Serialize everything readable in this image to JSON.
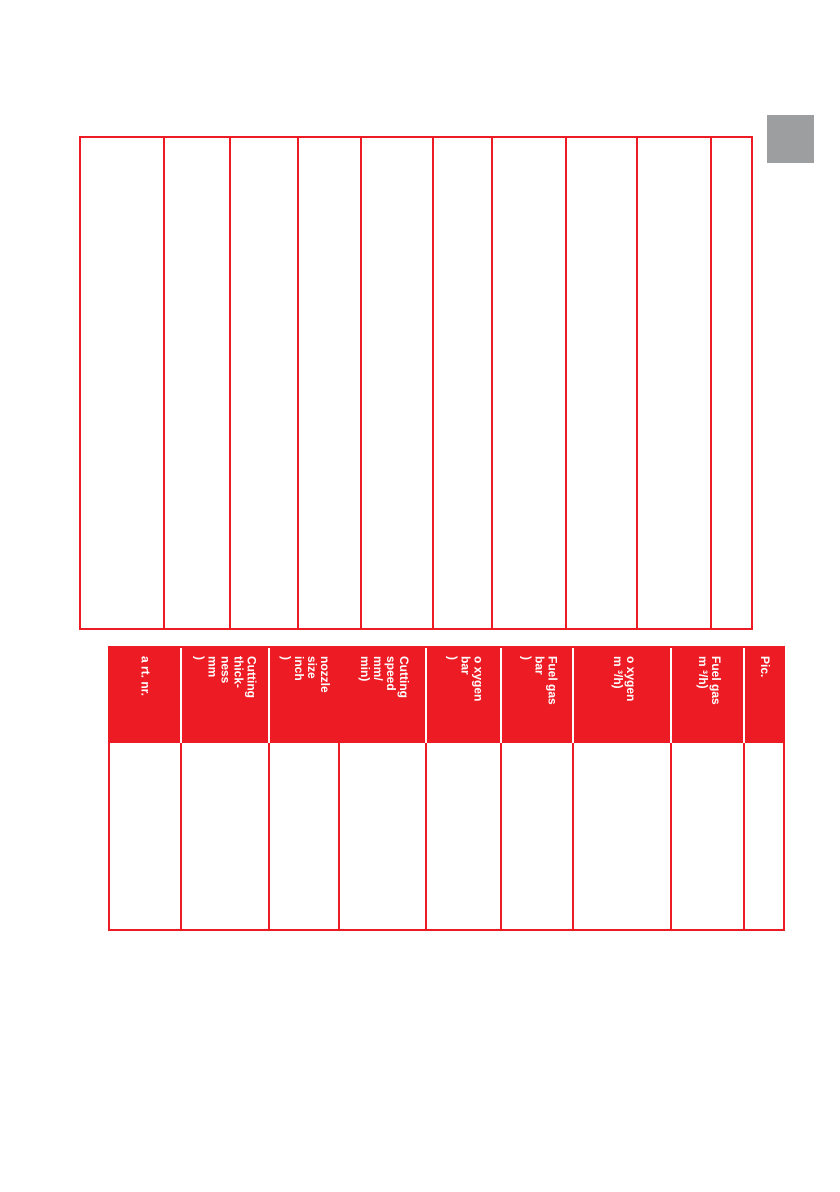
{
  "accent_color": "#ed1c24",
  "tab_color": "#9d9ea0",
  "table": {
    "headers": [
      "a rt. nr.",
      "Cutting\nthick-\nness\nmm\n)",
      "nozzle\nsize\ninch\n)",
      "Cutting\nspeed\nmm/\nmin)",
      "o xygen\nbar\n)",
      "Fuel gas\nbar\n)",
      "o xygen\nm ³/h)",
      "Fuel gas\nm ³/h)",
      "Pic."
    ]
  }
}
